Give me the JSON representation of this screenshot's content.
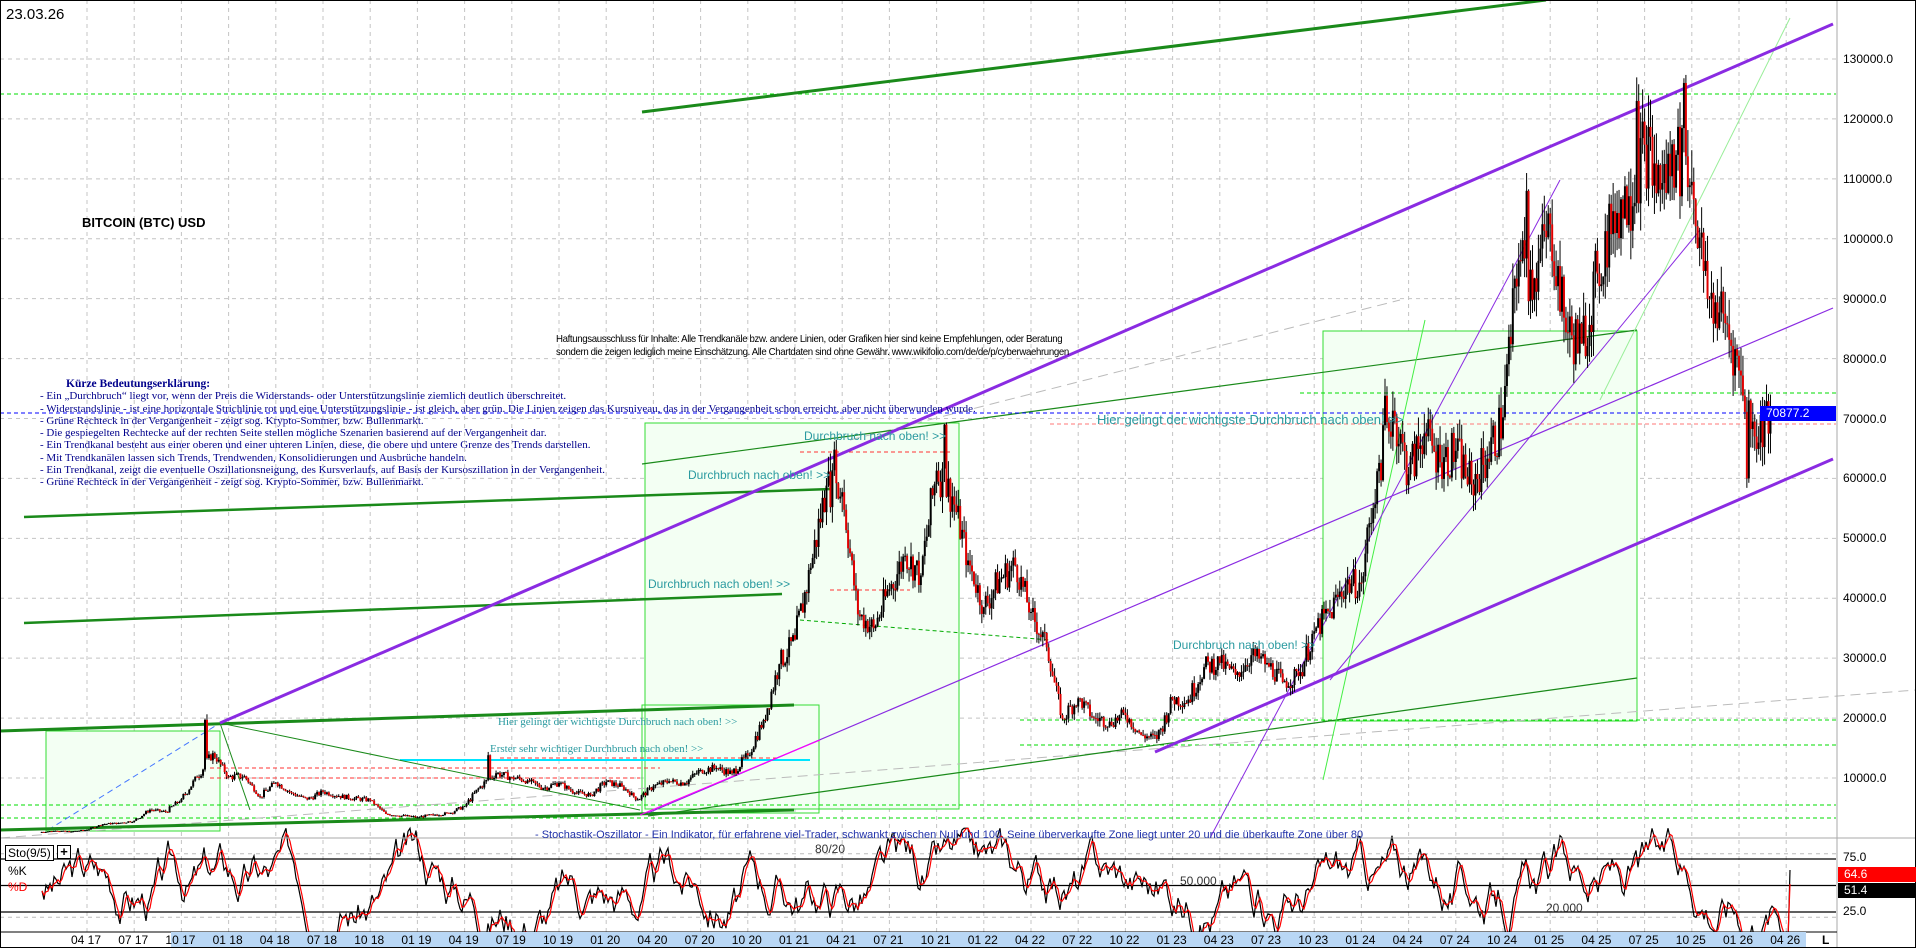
{
  "header": {
    "date": "23.03.26",
    "title": "BITCOIN (BTC) USD"
  },
  "legend": {
    "title": "Kürze Bedeutungserklärung:",
    "lines": [
      "- Ein „Durchbruch“ liegt vor, wenn der Preis die Widerstands- oder Unterstützungslinie ziemlich deutlich überschreitet.",
      "- Widerstandslinie - ist eine horizontale Strichlinie rot und eine Unterstützungslinie - ist gleich, aber grün. Die Linien zeigen das Kursniveau, das in der Vergangenheit schon erreicht, aber nicht überwunden wurde.",
      "- Grüne Rechteck in der Vergangenheit - zeigt sog. Krypto-Sommer, bzw. Bullenmarkt.",
      "- Die gespiegelten Rechtecke auf der rechten Seite stellen mögliche Szenarien basierend auf der Vergangenheit dar.",
      "- Ein Trendkanal besteht aus einer oberen und einer unteren Linien, diese, die obere und untere Grenze des Trends darstellen.",
      "- Mit Trendkanälen lassen sich Trends, Trendwenden, Konsolidierungen und Ausbrüche handeln.",
      " - Ein Trendkanal, zeigt die eventuelle Oszillationsneigung, des Kursverlaufs, auf Basis der Kursoszillation in der Vergangenheit.",
      " - Grüne Rechteck in der Vergangenheit - zeigt sog. Krypto-Sommer, bzw. Bullenmarkt."
    ]
  },
  "disclaimer": [
    "Haftungsausschluss für Inhalte: Alle Trendkanäle bzw. andere Linien, oder Grafiken hier sind keine Empfehlungen, oder Beratung",
    "sondern die zeigen lediglich meine  Einschätzung. Alle Chartdaten sind ohne Gewähr.  www.wikifolio.com/de/de/p/cyberwaehrungen"
  ],
  "annotations": {
    "breakout": "Durchbruch nach oben! >>",
    "main_breakout": "Hier gelingt der wichtigste Durchbruch nach oben! >>",
    "first_breakout": "Erster sehr wichtiger Durchbruch nach oben! >>",
    "stochastic_note": "- Stochastik-Oszillator - Ein Indikator, für erfahrene viel-Trader, schwankt zwischen Null und 100. Seine überverkaufte Zone liegt unter 20 und die überkaufte Zone über 80",
    "level_80_20": "80/20",
    "level_50": "50.000",
    "level_20": "20.000"
  },
  "colors": {
    "channel": "#8a2be2",
    "support": "#00cc00",
    "resistance": "#ff4444",
    "trend": "#1a8a1a",
    "bull_zone": "#f3fff3",
    "last_price": "#0000ff",
    "k_line": "#000000",
    "d_line": "#ff0000"
  },
  "chart_data": [
    {
      "type": "candlestick",
      "title": "BITCOIN (BTC) USD",
      "start_month": "2017-01",
      "monthly_close": [
        970,
        1190,
        1080,
        1350,
        2300,
        2480,
        2870,
        4700,
        4340,
        6470,
        10200,
        14150,
        10200,
        10300,
        6900,
        9250,
        7500,
        6400,
        7700,
        7000,
        6600,
        6300,
        4000,
        3700,
        3450,
        3850,
        4100,
        5300,
        8600,
        10800,
        10100,
        9600,
        8300,
        9200,
        7550,
        7200,
        9350,
        8600,
        6400,
        8600,
        9450,
        9140,
        11350,
        11650,
        10780,
        13800,
        19700,
        29000,
        33100,
        45100,
        58800,
        57700,
        37300,
        35000,
        41500,
        47100,
        43800,
        61300,
        57000,
        46300,
        38500,
        43200,
        45500,
        37700,
        31800,
        19900,
        23300,
        20000,
        19400,
        20500,
        17200,
        16500,
        23100,
        23100,
        28500,
        29200,
        27200,
        30500,
        29200,
        26000,
        27000,
        34500,
        37700,
        42300,
        42600,
        61200,
        71300,
        60700,
        67500,
        62700,
        64600,
        59000,
        63300,
        70200,
        96400,
        93400,
        102400,
        84400,
        82500,
        94200,
        104600,
        107100,
        115700,
        108200,
        114000,
        109500,
        90000,
        87500,
        78000,
        67000,
        70877
      ],
      "peaks": [
        {
          "month": "2017-12",
          "value": 19700
        },
        {
          "month": "2019-06",
          "value": 13800
        },
        {
          "month": "2021-04",
          "value": 64800
        },
        {
          "month": "2021-11",
          "value": 69000
        },
        {
          "month": "2024-03",
          "value": 73800
        },
        {
          "month": "2024-12",
          "value": 108000
        },
        {
          "month": "2025-07",
          "value": 123000
        },
        {
          "month": "2025-10",
          "value": 126000
        },
        {
          "month": "2026-02",
          "value": 60000
        }
      ],
      "last_price": 70877.2,
      "last_price_label": "70877.2",
      "y_ticks": [
        "130000.0",
        "120000.0",
        "110000.0",
        "100000.0",
        "90000.0",
        "80000.0",
        "70000.0",
        "60000.0",
        "50000.0",
        "40000.0",
        "30000.0",
        "20000.0",
        "10000.0"
      ],
      "ylim": [
        0,
        135000
      ],
      "grid": true
    },
    {
      "type": "line",
      "title": "Sto(9/5)",
      "series": [
        {
          "name": "%K",
          "last": 64.6
        },
        {
          "name": "%D",
          "last": 51.4
        }
      ],
      "k_label": "64.6",
      "d_label": "51.4",
      "y_ticks": [
        "75.0",
        "25.0"
      ],
      "levels": [
        75,
        50,
        25
      ],
      "ylim": [
        0,
        100
      ]
    }
  ],
  "x_axis": {
    "ticks": [
      "04 17",
      "07 17",
      "10 17",
      "01 18",
      "04 18",
      "07 18",
      "10 18",
      "01 19",
      "04 19",
      "07 19",
      "10 19",
      "01 20",
      "04 20",
      "07 20",
      "10 20",
      "01 21",
      "04 21",
      "07 21",
      "10 21",
      "01 22",
      "04 22",
      "07 22",
      "10 22",
      "01 23",
      "04 23",
      "07 23",
      "10 23",
      "01 24",
      "04 24",
      "07 24",
      "10 24",
      "01 25",
      "04 25",
      "07 25",
      "10 25",
      "01 26",
      "04 26"
    ],
    "end_marker": "L"
  }
}
